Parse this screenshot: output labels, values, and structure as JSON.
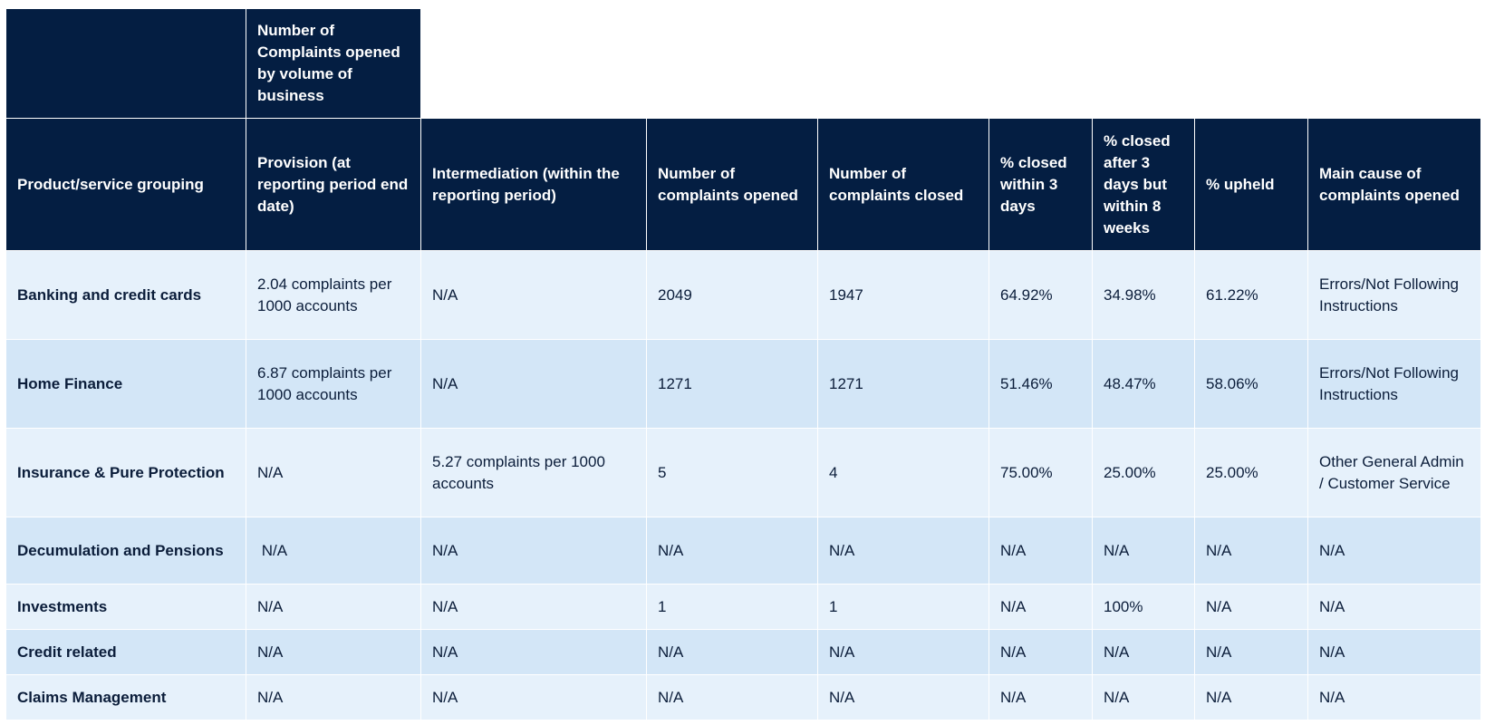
{
  "table": {
    "super_header": "Number of Complaints opened by volume of business",
    "columns": [
      "Product/service grouping",
      "Provision (at reporting period end date)",
      "Intermediation (within the reporting period)",
      "Number of complaints opened",
      "Number of complaints closed",
      "% closed within 3 days",
      "% closed after 3 days but within 8 weeks",
      "% upheld",
      "Main cause of complaints opened"
    ],
    "rows": [
      [
        "Banking and credit cards",
        "2.04 complaints per 1000 accounts",
        "N/A",
        "2049",
        "1947",
        "64.92%",
        "34.98%",
        "61.22%",
        "Errors/Not Following Instructions"
      ],
      [
        "Home Finance",
        "6.87 complaints per 1000 accounts",
        "N/A",
        "1271",
        "1271",
        "51.46%",
        "48.47%",
        "58.06%",
        "Errors/Not Following Instructions"
      ],
      [
        "Insurance & Pure Protection",
        "N/A",
        "5.27 complaints per 1000 accounts",
        "5",
        "4",
        "75.00%",
        "25.00%",
        "25.00%",
        "Other General Admin / Customer Service"
      ],
      [
        "Decumulation and Pensions",
        " N/A",
        "N/A",
        "N/A",
        "N/A",
        "N/A",
        "N/A",
        "N/A",
        "N/A"
      ],
      [
        "Investments",
        "N/A",
        "N/A",
        "1",
        "1",
        "N/A",
        "100%",
        "N/A",
        "N/A"
      ],
      [
        "Credit related",
        "N/A",
        "N/A",
        "N/A",
        "N/A",
        "N/A",
        "N/A",
        "N/A",
        "N/A"
      ],
      [
        "Claims Management",
        "N/A",
        "N/A",
        "N/A",
        "N/A",
        "N/A",
        "N/A",
        "N/A",
        "N/A"
      ]
    ]
  }
}
